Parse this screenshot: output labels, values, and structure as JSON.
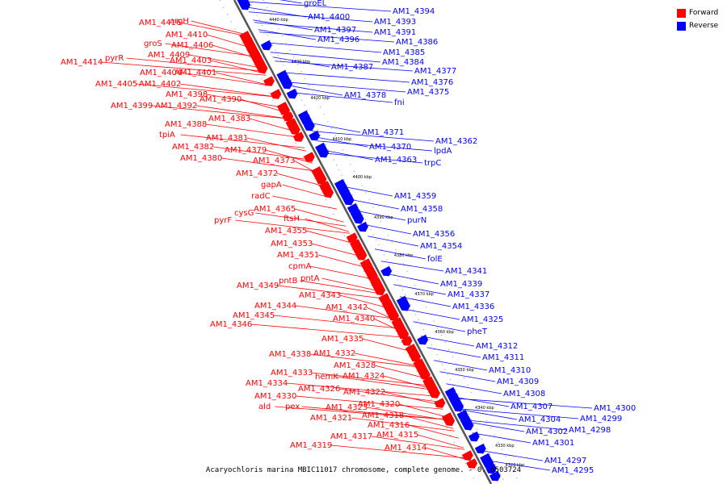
{
  "caption": "Acaryochloris marina MBIC11017 chromosome, complete genome. - 0..6503724",
  "legend": [
    {
      "label": "Forward",
      "color": "#ff0000"
    },
    {
      "label": "Reverse",
      "color": "#0000ff"
    }
  ],
  "colors": {
    "forward": "#ff0000",
    "reverse": "#0000ff",
    "backbone": "#555555"
  },
  "ticks": [
    "4440 kbp",
    "4430 kbp",
    "4420 kbp",
    "4410 kbp",
    "4400 kbp",
    "4390 kbp",
    "4380 kbp",
    "4370 kbp",
    "4360 kbp",
    "4350 kbp",
    "4340 kbp",
    "4330 kbp",
    "4320 kbp"
  ],
  "forward_labels": [
    "argH",
    "AM1_4416",
    "AM1_4410",
    "AM1_4406",
    "groS",
    "AM1_4409",
    "pyrR",
    "AM1_4414",
    "AM1_4403",
    "AM1_4404",
    "AM1_4401",
    "AM1_4405",
    "AM1_4402",
    "AM1_4398",
    "AM1_4390",
    "AM1_4399",
    "AM1_4392",
    "AM1_4383",
    "AM1_4388",
    "tpiA",
    "AM1_4381",
    "AM1_4382",
    "AM1_4379",
    "AM1_4380",
    "AM1_4373",
    "AM1_4372",
    "gapA",
    "radC",
    "cysG",
    "AM1_4365",
    "pyrF",
    "ftsH",
    "AM1_4355",
    "AM1_4353",
    "AM1_4351",
    "cpmA",
    "pntB",
    "pntA",
    "AM1_4349",
    "AM1_4343",
    "AM1_4344",
    "AM1_4342",
    "AM1_4345",
    "AM1_4340",
    "AM1_4346",
    "AM1_4335",
    "AM1_4338",
    "AM1_4332",
    "AM1_4328",
    "AM1_4333",
    "hemK",
    "AM1_4324",
    "AM1_4334",
    "AM1_4322",
    "AM1_4326",
    "AM1_4330",
    "AM1_4320",
    "ald",
    "pex",
    "AM1_4323",
    "AM1_4318",
    "AM1_4321",
    "AM1_4316",
    "AM1_4317",
    "AM1_4315",
    "AM1_4319",
    "AM1_4314"
  ],
  "reverse_labels": [
    "groEL",
    "AM1_4400",
    "AM1_4394",
    "AM1_4393",
    "AM1_4397",
    "AM1_4391",
    "AM1_4396",
    "AM1_4386",
    "AM1_4385",
    "AM1_4384",
    "AM1_4387",
    "AM1_4377",
    "AM1_4376",
    "AM1_4375",
    "AM1_4378",
    "fni",
    "AM1_4371",
    "AM1_4362",
    "AM1_4370",
    "lpdA",
    "AM1_4363",
    "trpC",
    "AM1_4359",
    "AM1_4358",
    "purN",
    "AM1_4356",
    "AM1_4354",
    "folE",
    "AM1_4341",
    "AM1_4339",
    "AM1_4337",
    "AM1_4336",
    "AM1_4325",
    "pheT",
    "AM1_4312",
    "AM1_4311",
    "AM1_4310",
    "AM1_4309",
    "AM1_4308",
    "AM1_4307",
    "AM1_4300",
    "AM1_4304",
    "AM1_4299",
    "AM1_4298",
    "AM1_4302",
    "AM1_4301",
    "AM1_4297",
    "AM1_4295"
  ]
}
